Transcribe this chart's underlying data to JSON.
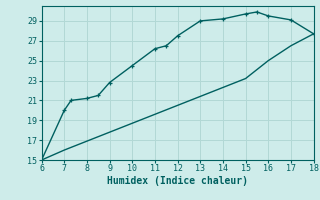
{
  "title": "",
  "xlabel": "Humidex (Indice chaleur)",
  "ylabel": "",
  "background_color": "#ceecea",
  "grid_color": "#b2d8d5",
  "line_color": "#006060",
  "xlim": [
    6,
    18
  ],
  "ylim": [
    15,
    30.5
  ],
  "xticks": [
    6,
    7,
    8,
    9,
    10,
    11,
    12,
    13,
    14,
    15,
    16,
    17,
    18
  ],
  "yticks": [
    15,
    17,
    19,
    21,
    23,
    25,
    27,
    29
  ],
  "curve1_x": [
    6,
    7,
    7.3,
    8,
    8.5,
    9,
    10,
    11,
    11.5,
    12,
    13,
    14,
    15,
    15.5,
    16,
    17,
    18
  ],
  "curve1_y": [
    15,
    20,
    21,
    21.2,
    21.5,
    22.8,
    24.5,
    26.2,
    26.5,
    27.5,
    29.0,
    29.2,
    29.7,
    29.9,
    29.5,
    29.1,
    27.7
  ],
  "curve2_x": [
    6,
    7,
    8,
    9,
    10,
    11,
    12,
    13,
    14,
    15,
    16,
    17,
    18
  ],
  "curve2_y": [
    15,
    16.0,
    16.9,
    17.8,
    18.7,
    19.6,
    20.5,
    21.4,
    22.3,
    23.2,
    25.0,
    26.5,
    27.7
  ]
}
